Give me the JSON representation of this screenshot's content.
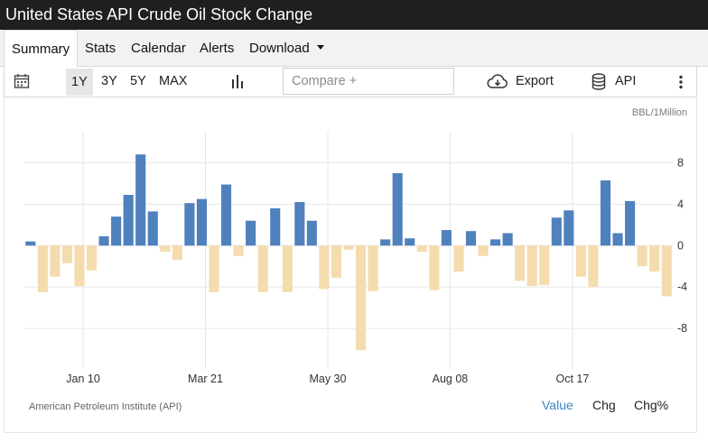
{
  "title": "United States API Crude Oil Stock Change",
  "tabs": [
    {
      "label": "Summary",
      "active": true
    },
    {
      "label": "Stats",
      "active": false
    },
    {
      "label": "Calendar",
      "active": false
    },
    {
      "label": "Alerts",
      "active": false
    },
    {
      "label": "Download",
      "active": false
    }
  ],
  "toolbar": {
    "calendar_icon": "calendar-icon",
    "ranges": [
      {
        "label": "1Y",
        "selected": true
      },
      {
        "label": "3Y",
        "selected": false
      },
      {
        "label": "5Y",
        "selected": false
      },
      {
        "label": "MAX",
        "selected": false
      }
    ],
    "chart_type_icon": "bar-chart-icon",
    "compare_placeholder": "Compare +",
    "export_label": "Export",
    "export_icon": "cloud-download-icon",
    "api_label": "API",
    "api_icon": "database-icon",
    "more_icon": "more-vertical-icon"
  },
  "footer": {
    "source": "American Petroleum Institute (API)",
    "modes": [
      {
        "label": "Value",
        "active": true
      },
      {
        "label": "Chg",
        "active": false
      },
      {
        "label": "Chg%",
        "active": false
      }
    ]
  },
  "colors": {
    "positive": "#4f81bd",
    "negative": "#f5dcae",
    "active_link": "#3a86c8"
  },
  "chart_data": {
    "type": "bar",
    "unit_label": "BBL/1Million",
    "x_tick_labels": [
      "Jan 10",
      "Mar 21",
      "May 30",
      "Aug 08",
      "Oct 17"
    ],
    "x_tick_positions": [
      4,
      14,
      24,
      34,
      44
    ],
    "y_ticks": [
      8,
      4,
      0,
      -4,
      -8
    ],
    "ylim": [
      -12,
      11
    ],
    "grid": true,
    "values": [
      0.4,
      -4.5,
      -3.0,
      -1.7,
      -3.9,
      -2.4,
      0.9,
      2.8,
      4.9,
      8.8,
      3.3,
      -0.6,
      -1.4,
      4.1,
      4.5,
      -4.5,
      5.9,
      -1.0,
      2.4,
      -4.5,
      3.6,
      -4.5,
      4.2,
      2.4,
      -4.2,
      -3.1,
      -0.4,
      -10.1,
      -4.4,
      0.6,
      7.0,
      0.7,
      -0.6,
      -4.3,
      1.5,
      -2.5,
      1.4,
      -1.0,
      0.6,
      1.2,
      -3.4,
      -3.9,
      -3.8,
      2.7,
      3.4,
      -3.0,
      -4.0,
      6.3,
      1.2,
      4.3,
      -2.0,
      -2.5,
      -4.9
    ]
  }
}
